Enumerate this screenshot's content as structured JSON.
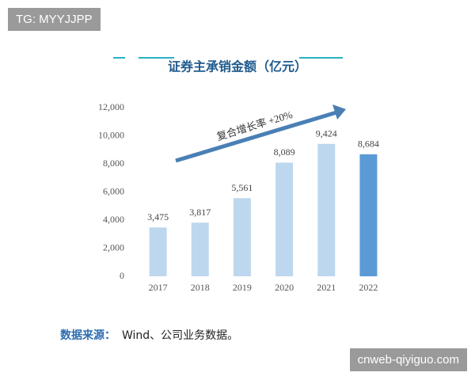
{
  "chart_data": {
    "type": "bar",
    "title": "证券主承销金额（亿元）",
    "categories": [
      "2017",
      "2018",
      "2019",
      "2020",
      "2021",
      "2022"
    ],
    "values": [
      3475,
      3817,
      5561,
      8089,
      9424,
      8684
    ],
    "value_labels": [
      "3,475",
      "3,817",
      "5,561",
      "8,089",
      "9,424",
      "8,684"
    ],
    "colors": [
      "#bdd7ee",
      "#bdd7ee",
      "#bdd7ee",
      "#bdd7ee",
      "#bdd7ee",
      "#5b9bd5"
    ],
    "ylim": [
      0,
      12000
    ],
    "yticks": [
      0,
      {
        "value": 2000,
        "label": "2,000"
      },
      {
        "value": 4000,
        "label": "4,000"
      },
      {
        "value": 6000,
        "label": "6,000"
      },
      {
        "value": 8000,
        "label": "8,000"
      },
      {
        "value": 10000,
        "label": "10,000"
      },
      {
        "value": 12000,
        "label": "12,000"
      }
    ],
    "grid": false,
    "annotation": "复合增长率 +20%"
  },
  "watermarks": [
    "TG: MYYJJPP",
    "cnweb-qiyiguo.com"
  ],
  "source": {
    "label": "数据来源：",
    "text": "Wind、公司业务数据。"
  }
}
